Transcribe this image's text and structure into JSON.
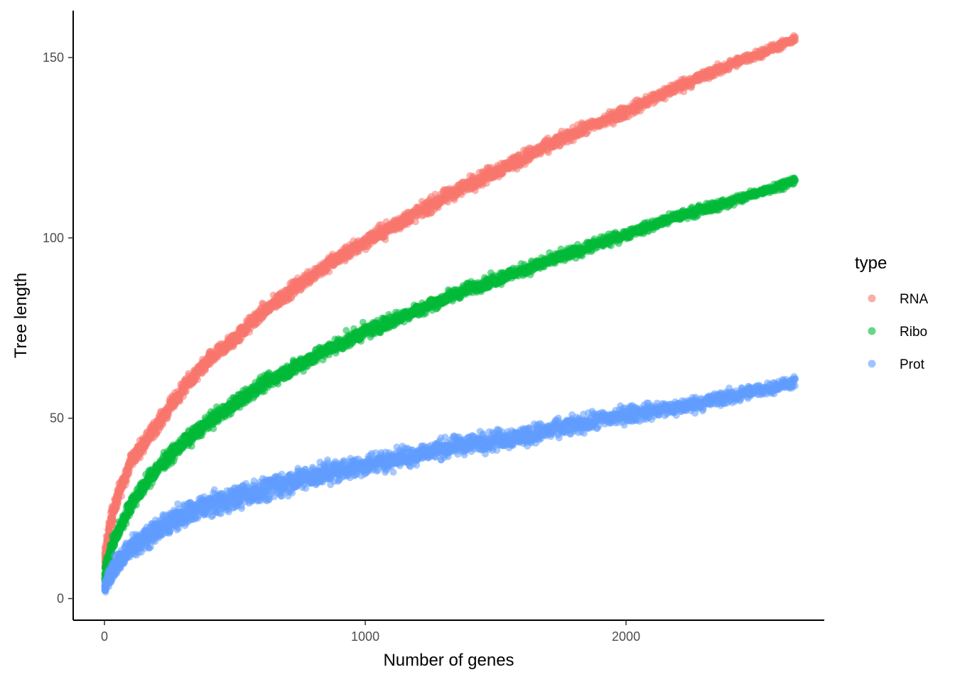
{
  "chart_data": {
    "type": "scatter",
    "xlabel": "Number of genes",
    "ylabel": "Tree length",
    "xlim": [
      -120,
      2760
    ],
    "ylim": [
      -6,
      163
    ],
    "xticks": [
      0,
      1000,
      2000
    ],
    "xtick_labels": [
      "0",
      "1000",
      "2000"
    ],
    "yticks": [
      0,
      50,
      100,
      150
    ],
    "ytick_labels": [
      "0",
      "50",
      "100",
      "150"
    ],
    "grid": false,
    "legend": {
      "title": "type",
      "placement": "right",
      "entries": [
        "RNA",
        "Ribo",
        "Prot"
      ]
    },
    "series": [
      {
        "name": "RNA",
        "color": "#F8766D",
        "x": [
          1,
          25,
          50,
          100,
          200,
          300,
          400,
          500,
          600,
          800,
          1000,
          1200,
          1400,
          1600,
          1800,
          2000,
          2200,
          2400,
          2650
        ],
        "y": [
          10,
          22,
          28,
          38,
          48,
          58,
          66,
          72,
          79,
          90,
          99,
          107,
          115,
          122,
          129,
          135,
          142,
          148,
          155
        ],
        "spread": [
          6,
          4,
          3.5,
          3,
          3,
          3,
          3,
          3,
          3,
          3,
          3,
          3,
          3,
          3,
          2.5,
          2.5,
          2.5,
          2,
          1.5
        ]
      },
      {
        "name": "Ribo",
        "color": "#00BA38",
        "x": [
          1,
          25,
          50,
          100,
          200,
          300,
          400,
          500,
          600,
          800,
          1000,
          1200,
          1400,
          1600,
          1800,
          2000,
          2200,
          2400,
          2650
        ],
        "y": [
          7,
          14,
          18,
          26,
          36,
          43,
          49,
          54,
          59,
          67,
          74,
          80,
          86,
          91,
          96,
          101,
          106,
          110,
          116
        ],
        "spread": [
          4,
          3,
          3,
          3,
          3,
          3,
          3,
          3,
          3,
          3,
          3,
          2.5,
          2.5,
          2.5,
          2.5,
          2,
          2,
          2,
          1.5
        ]
      },
      {
        "name": "Prot",
        "color": "#619CFF",
        "x": [
          1,
          25,
          50,
          100,
          200,
          300,
          400,
          500,
          600,
          800,
          1000,
          1200,
          1400,
          1600,
          1800,
          2000,
          2200,
          2400,
          2650
        ],
        "y": [
          3,
          7,
          10,
          14,
          19,
          23,
          26,
          28,
          30,
          34,
          37,
          40,
          43,
          45,
          48,
          51,
          53,
          56,
          60
        ],
        "spread": [
          2,
          3.5,
          4,
          4.5,
          4.5,
          4.5,
          4.5,
          4.5,
          4.5,
          4.5,
          4,
          4,
          4,
          4,
          3.5,
          3.5,
          3,
          3,
          2
        ]
      }
    ]
  }
}
